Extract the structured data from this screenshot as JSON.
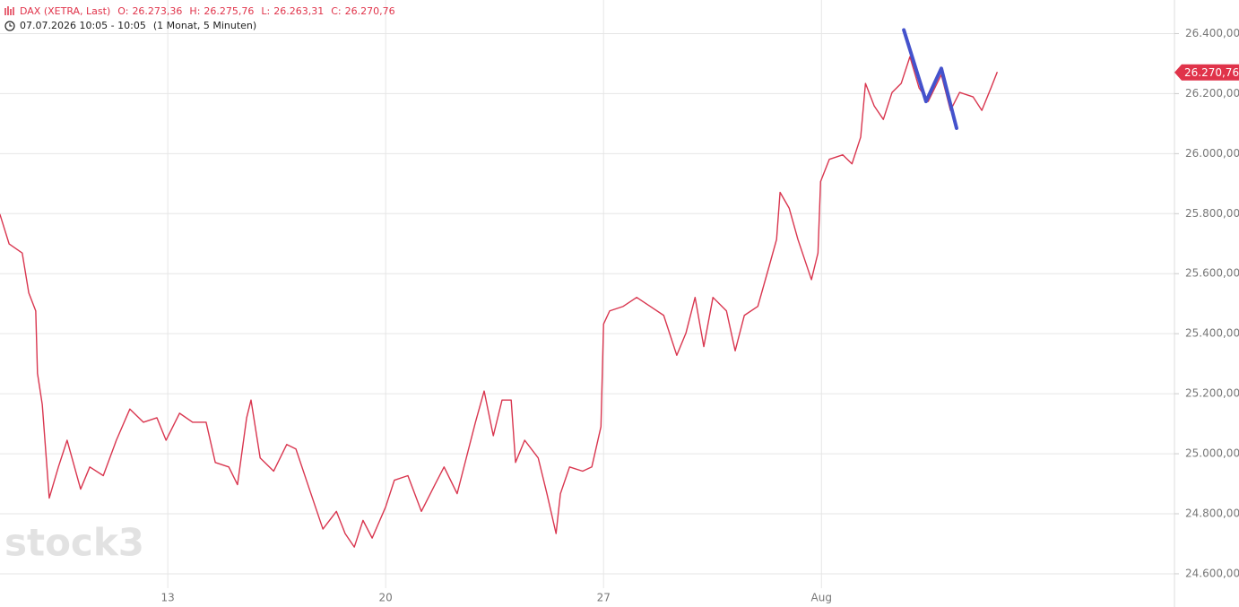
{
  "chart_data": {
    "type": "line",
    "title": "DAX (XETRA, Last)",
    "ohlc": [
      {
        "name": "O:",
        "value": 26273.36,
        "label": "26.273,36"
      },
      {
        "name": "H:",
        "value": 26275.76,
        "label": "26.275,76"
      },
      {
        "name": "L:",
        "value": 26263.31,
        "label": "26.263,31"
      },
      {
        "name": "C:",
        "value": 26270.76,
        "label": "26.270,76"
      }
    ],
    "subtitle": "07.07.2026 10:05 - 10:05",
    "period": "(1 Monat, 5 Minuten)",
    "watermark": "stock3",
    "xlim": [
      1.15,
      28.1
    ],
    "xticks": [
      {
        "value": 5,
        "label": "13"
      },
      {
        "value": 10,
        "label": "20"
      },
      {
        "value": 15,
        "label": "27"
      },
      {
        "value": 20,
        "label": "Aug"
      }
    ],
    "ylim": [
      24570,
      26500
    ],
    "yticks": [
      {
        "value": 24600,
        "label": "24.600,00"
      },
      {
        "value": 24800,
        "label": "24.800,00"
      },
      {
        "value": 25000,
        "label": "25.000,00"
      },
      {
        "value": 25200,
        "label": "25.200,00"
      },
      {
        "value": 25400,
        "label": "25.400,00"
      },
      {
        "value": 25600,
        "label": "25.600,00"
      },
      {
        "value": 25800,
        "label": "25.800,00"
      },
      {
        "value": 26000,
        "label": "26.000,00"
      },
      {
        "value": 26200,
        "label": "26.200,00"
      },
      {
        "value": 26400,
        "label": "26.400,00"
      }
    ],
    "grid": true,
    "last_price": {
      "value": 26270.76,
      "label": "26.270,76"
    },
    "series": [
      {
        "color": "#d9364f",
        "width": 1.4,
        "x": [
          1.15,
          1.36,
          1.66,
          1.81,
          1.97,
          2.01,
          2.12,
          2.28,
          2.49,
          2.69,
          3.0,
          3.21,
          3.52,
          3.82,
          4.13,
          4.44,
          4.75,
          4.96,
          5.27,
          5.57,
          5.88,
          6.09,
          6.4,
          6.6,
          6.81,
          6.91,
          7.12,
          7.43,
          7.73,
          7.94,
          8.25,
          8.56,
          8.87,
          9.07,
          9.28,
          9.48,
          9.69,
          10.0,
          10.2,
          10.51,
          10.82,
          11.13,
          11.34,
          11.64,
          11.85,
          12.06,
          12.26,
          12.47,
          12.67,
          12.88,
          12.98,
          13.19,
          13.5,
          13.7,
          13.91,
          14.01,
          14.22,
          14.52,
          14.73,
          14.94,
          15.0,
          15.14,
          15.45,
          15.76,
          16.07,
          16.38,
          16.68,
          16.89,
          17.1,
          17.3,
          17.51,
          17.82,
          18.02,
          18.23,
          18.54,
          18.8,
          18.97,
          19.05,
          19.26,
          19.46,
          19.77,
          19.92,
          19.98,
          20.18,
          20.49,
          20.7,
          20.9,
          21.01,
          21.21,
          21.42,
          21.62,
          21.83,
          22.03,
          22.24,
          22.45,
          22.75,
          22.96,
          23.17,
          23.48,
          23.68,
          23.89,
          24.03
        ],
        "values": [
          25797,
          25699,
          25669,
          25536,
          25476,
          25268,
          25164,
          24852,
          24956,
          25045,
          24882,
          24956,
          24927,
          25045,
          25149,
          25105,
          25120,
          25045,
          25135,
          25105,
          25105,
          24971,
          24956,
          24897,
          25120,
          25179,
          24986,
          24942,
          25031,
          25016,
          24882,
          24749,
          24808,
          24734,
          24689,
          24778,
          24719,
          24823,
          24912,
          24927,
          24808,
          24897,
          24956,
          24867,
          24986,
          25105,
          25209,
          25060,
          25179,
          25179,
          24971,
          25045,
          24986,
          24867,
          24734,
          24867,
          24956,
          24942,
          24956,
          25090,
          25432,
          25476,
          25491,
          25521,
          25491,
          25461,
          25328,
          25402,
          25521,
          25357,
          25521,
          25476,
          25343,
          25461,
          25491,
          25625,
          25714,
          25871,
          25818,
          25714,
          25580,
          25669,
          25907,
          25981,
          25996,
          25966,
          26055,
          26234,
          26159,
          26114,
          26204,
          26234,
          26323,
          26219,
          26174,
          26263,
          26144,
          26204,
          26189,
          26144,
          26219,
          26270.76
        ]
      },
      {
        "color": "#4452cc",
        "width": 4,
        "x": [
          21.89,
          22.4,
          22.75,
          23.1
        ],
        "values": [
          26412,
          26174,
          26284,
          26085
        ]
      }
    ]
  }
}
